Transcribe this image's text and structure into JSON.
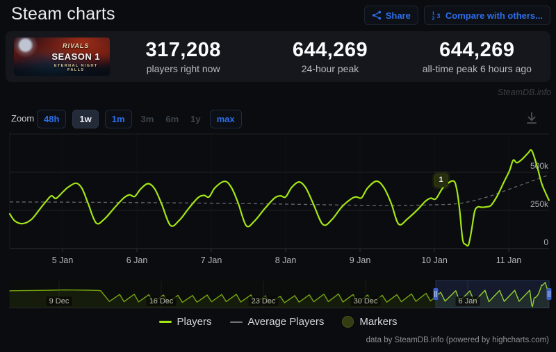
{
  "page": {
    "title": "Steam charts",
    "watermark": "SteamDB.info",
    "footer": "data by SteamDB.info (powered by highcharts.com)"
  },
  "header": {
    "share_label": "Share",
    "compare_label": "Compare with others..."
  },
  "stats": {
    "banner": {
      "logo": "RIVALS",
      "season": "SEASON 1",
      "subtitle": "ETERNAL NIGHT FALLS"
    },
    "items": [
      {
        "value": "317,208",
        "label": "players right now"
      },
      {
        "value": "644,269",
        "label": "24-hour peak"
      },
      {
        "value": "644,269",
        "label": "all-time peak 6 hours ago"
      }
    ]
  },
  "toolbar": {
    "zoom_label": "Zoom",
    "buttons": [
      {
        "label": "48h",
        "state": "on"
      },
      {
        "label": "1w",
        "state": "sel"
      },
      {
        "label": "1m",
        "state": "on"
      },
      {
        "label": "3m",
        "state": "dis"
      },
      {
        "label": "6m",
        "state": "dis"
      },
      {
        "label": "1y",
        "state": "dis"
      },
      {
        "label": "max",
        "state": "on"
      }
    ]
  },
  "legend": {
    "items": [
      {
        "label": "Players",
        "swatch": "line",
        "color": "#a3e614"
      },
      {
        "label": "Average Players",
        "swatch": "line",
        "color": "#6e7378"
      },
      {
        "label": "Markers",
        "swatch": "circle",
        "color": "#333c12"
      }
    ]
  },
  "colors": {
    "green": "#a3e614",
    "avg_gray": "#75797e",
    "blue": "#2d6ee8",
    "selection": "#4867c4",
    "grid": "#1d2126",
    "axis": "#2b3036",
    "ylabel": "#a6acb2",
    "xlabel": "#b3b8bd"
  },
  "chart_data": {
    "type": "line",
    "title": "Steam charts - concurrent players (1w zoom)",
    "ylabel": "players",
    "units": "thousands of players",
    "main": {
      "x_unit": "days since 5 Jan 00:00",
      "xlabels": [
        {
          "t": 0,
          "label": "5 Jan"
        },
        {
          "t": 1,
          "label": "6 Jan"
        },
        {
          "t": 2,
          "label": "7 Jan"
        },
        {
          "t": 3,
          "label": "8 Jan"
        },
        {
          "t": 4,
          "label": "9 Jan"
        },
        {
          "t": 5,
          "label": "10 Jan"
        },
        {
          "t": 6,
          "label": "11 Jan"
        }
      ],
      "gridlines_k": [
        750,
        500,
        250,
        0
      ],
      "ylabels": [
        {
          "v": 500,
          "label": "500k"
        },
        {
          "v": 250,
          "label": "250k"
        },
        {
          "v": 0,
          "label": "0"
        }
      ],
      "ylim_k": [
        0,
        780
      ],
      "series": [
        {
          "name": "Players",
          "style": "solid",
          "points": [
            [
              -0.71,
              227
            ],
            [
              -0.64,
              180
            ],
            [
              -0.54,
              163
            ],
            [
              -0.42,
              190
            ],
            [
              -0.3,
              262
            ],
            [
              -0.22,
              310
            ],
            [
              -0.15,
              345
            ],
            [
              -0.09,
              328
            ],
            [
              0.0,
              368
            ],
            [
              0.07,
              400
            ],
            [
              0.18,
              428
            ],
            [
              0.26,
              395
            ],
            [
              0.34,
              300
            ],
            [
              0.45,
              168
            ],
            [
              0.56,
              192
            ],
            [
              0.7,
              268
            ],
            [
              0.82,
              330
            ],
            [
              0.9,
              352
            ],
            [
              0.97,
              341
            ],
            [
              1.05,
              390
            ],
            [
              1.15,
              425
            ],
            [
              1.24,
              390
            ],
            [
              1.33,
              295
            ],
            [
              1.45,
              152
            ],
            [
              1.57,
              185
            ],
            [
              1.7,
              265
            ],
            [
              1.82,
              332
            ],
            [
              1.9,
              348
            ],
            [
              1.97,
              338
            ],
            [
              2.05,
              398
            ],
            [
              2.18,
              440
            ],
            [
              2.27,
              400
            ],
            [
              2.36,
              300
            ],
            [
              2.47,
              150
            ],
            [
              2.58,
              180
            ],
            [
              2.72,
              262
            ],
            [
              2.85,
              330
            ],
            [
              2.93,
              345
            ],
            [
              3.0,
              338
            ],
            [
              3.08,
              400
            ],
            [
              3.18,
              436
            ],
            [
              3.27,
              398
            ],
            [
              3.37,
              295
            ],
            [
              3.5,
              158
            ],
            [
              3.62,
              188
            ],
            [
              3.75,
              270
            ],
            [
              3.88,
              325
            ],
            [
              3.95,
              338
            ],
            [
              4.02,
              332
            ],
            [
              4.1,
              395
            ],
            [
              4.22,
              441
            ],
            [
              4.32,
              400
            ],
            [
              4.42,
              296
            ],
            [
              4.52,
              160
            ],
            [
              4.64,
              195
            ],
            [
              4.78,
              258
            ],
            [
              4.88,
              310
            ],
            [
              4.95,
              330
            ],
            [
              5.02,
              326
            ],
            [
              5.12,
              400
            ],
            [
              5.25,
              443
            ],
            [
              5.3,
              390
            ],
            [
              5.34,
              250
            ],
            [
              5.38,
              60
            ],
            [
              5.42,
              27
            ],
            [
              5.46,
              26
            ],
            [
              5.5,
              120
            ],
            [
              5.54,
              240
            ],
            [
              5.58,
              272
            ],
            [
              5.64,
              270
            ],
            [
              5.7,
              273
            ],
            [
              5.76,
              282
            ],
            [
              5.84,
              340
            ],
            [
              5.93,
              430
            ],
            [
              6.01,
              510
            ],
            [
              6.06,
              578
            ],
            [
              6.11,
              562
            ],
            [
              6.18,
              585
            ],
            [
              6.26,
              625
            ],
            [
              6.31,
              641
            ],
            [
              6.38,
              540
            ],
            [
              6.44,
              430
            ],
            [
              6.49,
              370
            ],
            [
              6.54,
              317
            ]
          ]
        },
        {
          "name": "Average Players",
          "style": "dashed",
          "points": [
            [
              -0.71,
              305
            ],
            [
              0,
              304
            ],
            [
              1,
              301
            ],
            [
              2,
              297
            ],
            [
              3,
              291
            ],
            [
              3.9,
              284
            ],
            [
              4.39,
              282
            ],
            [
              4.95,
              286
            ],
            [
              5.33,
              295
            ],
            [
              5.7,
              336
            ],
            [
              6.07,
              400
            ],
            [
              6.54,
              482
            ]
          ]
        }
      ],
      "marker": {
        "label": "1",
        "t": 5.08,
        "v": 450
      }
    },
    "navigator": {
      "x_unit": "days since 6 Dec 00:00",
      "xlabels": [
        {
          "d": 3,
          "label": "9 Dec"
        },
        {
          "d": 10,
          "label": "16 Dec"
        },
        {
          "d": 17,
          "label": "23 Dec"
        },
        {
          "d": 24,
          "label": "30 Dec"
        },
        {
          "d": 31,
          "label": "6 Jan"
        }
      ],
      "points": [
        [
          -0.4,
          428
        ],
        [
          0.5,
          432
        ],
        [
          1.5,
          437
        ],
        [
          2.5,
          443
        ],
        [
          3.3,
          450
        ],
        [
          4,
          448
        ],
        [
          5,
          442
        ],
        [
          5.6,
          438
        ],
        [
          5.85,
          430
        ],
        [
          6.45,
          155
        ],
        [
          7.15,
          335
        ],
        [
          7.45,
          150
        ],
        [
          8.15,
          340
        ],
        [
          8.45,
          145
        ],
        [
          9.15,
          330
        ],
        [
          9.45,
          140
        ],
        [
          10.15,
          320
        ],
        [
          10.45,
          135
        ],
        [
          11.15,
          312
        ],
        [
          11.45,
          132
        ],
        [
          12.15,
          308
        ],
        [
          12.45,
          138
        ],
        [
          13.15,
          318
        ],
        [
          13.45,
          148
        ],
        [
          14.15,
          332
        ],
        [
          14.45,
          152
        ],
        [
          15.15,
          338
        ],
        [
          15.45,
          142
        ],
        [
          16.15,
          322
        ],
        [
          16.45,
          128
        ],
        [
          17.15,
          300
        ],
        [
          17.45,
          118
        ],
        [
          18.15,
          288
        ],
        [
          18.45,
          124
        ],
        [
          19.15,
          305
        ],
        [
          19.45,
          138
        ],
        [
          20.15,
          325
        ],
        [
          20.45,
          148
        ],
        [
          21.15,
          342
        ],
        [
          21.45,
          152
        ],
        [
          22.15,
          348
        ],
        [
          22.45,
          142
        ],
        [
          23.15,
          332
        ],
        [
          23.45,
          132
        ],
        [
          24.15,
          318
        ],
        [
          24.45,
          128
        ],
        [
          25.15,
          312
        ],
        [
          25.45,
          138
        ],
        [
          26.15,
          328
        ],
        [
          26.45,
          148
        ],
        [
          27.15,
          348
        ],
        [
          27.45,
          158
        ],
        [
          28.15,
          362
        ],
        [
          28.45,
          168
        ],
        [
          29.15,
          388
        ],
        [
          29.45,
          163
        ],
        [
          30.18,
          428
        ],
        [
          30.45,
          165
        ],
        [
          31.15,
          425
        ],
        [
          31.45,
          152
        ],
        [
          32.18,
          440
        ],
        [
          32.45,
          150
        ],
        [
          33.18,
          436
        ],
        [
          33.5,
          158
        ],
        [
          34.22,
          441
        ],
        [
          34.52,
          160
        ],
        [
          35.25,
          443
        ],
        [
          35.38,
          60
        ],
        [
          35.44,
          27
        ],
        [
          35.55,
          240
        ],
        [
          35.7,
          273
        ],
        [
          35.84,
          340
        ],
        [
          36.01,
          510
        ],
        [
          36.06,
          578
        ],
        [
          36.11,
          562
        ],
        [
          36.31,
          641
        ],
        [
          36.57,
          317
        ]
      ],
      "selection_days": [
        28.81,
        36.57
      ]
    }
  }
}
